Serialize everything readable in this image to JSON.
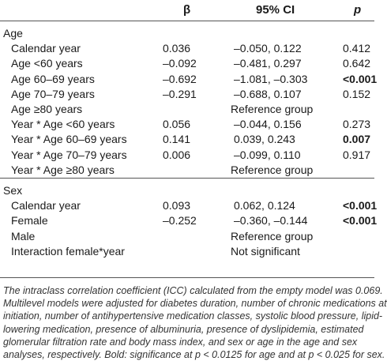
{
  "header": {
    "beta": "β",
    "ci": "95% CI",
    "p": "p"
  },
  "sections": [
    {
      "label": "Age",
      "rows": [
        {
          "label": "Calendar year",
          "beta": "0.036",
          "ci": "–0.050, 0.122",
          "p": "0.412",
          "p_bold": false
        },
        {
          "label": "Age <60 years",
          "beta": "–0.092",
          "ci": "–0.481, 0.297",
          "p": "0.642",
          "p_bold": false
        },
        {
          "label": "Age 60–69 years",
          "beta": "–0.692",
          "ci": "–1.081, –0.303",
          "p": "<0.001",
          "p_bold": true
        },
        {
          "label": "Age 70–79 years",
          "beta": "–0.291",
          "ci": "–0.688, 0.107",
          "p": "0.152",
          "p_bold": false
        },
        {
          "label": "Age ≥80 years",
          "ref": "Reference group"
        },
        {
          "label": "Year * Age <60 years",
          "beta": "0.056",
          "ci": "–0.044, 0.156",
          "p": "0.273",
          "p_bold": false
        },
        {
          "label": "Year * Age 60–69 years",
          "beta": "0.141",
          "ci": "0.039, 0.243",
          "p": "0.007",
          "p_bold": true
        },
        {
          "label": "Year * Age 70–79 years",
          "beta": "0.006",
          "ci": "–0.099, 0.110",
          "p": "0.917",
          "p_bold": false
        },
        {
          "label": "Year * Age ≥80 years",
          "ref": "Reference group"
        }
      ]
    },
    {
      "label": "Sex",
      "rows": [
        {
          "label": "Calendar year",
          "beta": "0.093",
          "ci": "0.062, 0.124",
          "p": "<0.001",
          "p_bold": true
        },
        {
          "label": "Female",
          "beta": "–0.252",
          "ci": "–0.360, –0.144",
          "p": "<0.001",
          "p_bold": true
        },
        {
          "label": "Male",
          "ref": "Reference group"
        },
        {
          "label": "Interaction female*year",
          "ref": "Not significant"
        }
      ]
    }
  ],
  "footnote": [
    "The intraclass correlation coefficient (ICC) calculated from the empty model was 0.069.",
    "Multilevel models were adjusted for diabetes duration, number of chronic medications at",
    "initiation, number of antihypertensive medication classes, systolic blood pressure, lipid-",
    "lowering medication, presence of albuminuria, presence of dyslipidemia, estimated",
    "glomerular filtration rate and body mass index, and sex or age in the age and sex",
    "analyses, respectively. Bold: significance at p < 0.0125 for age and at p < 0.025 for sex."
  ]
}
